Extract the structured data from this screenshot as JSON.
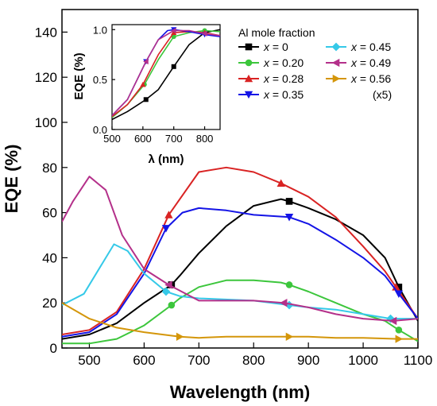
{
  "chart_data": [
    {
      "type": "line",
      "xlabel": "Wavelength (nm)",
      "ylabel": "EQE (%)",
      "xlim": [
        450,
        1100
      ],
      "ylim": [
        0,
        150
      ],
      "xticks": [
        500,
        600,
        700,
        800,
        900,
        1000,
        1100
      ],
      "yticks": [
        0,
        20,
        40,
        60,
        80,
        100,
        120,
        140
      ],
      "legend_title": "Al mole fraction",
      "legend_note": "(x5)",
      "legend_position": "top-right",
      "series": [
        {
          "name": "x = 0",
          "label_prefix": "x",
          "label_value": " = 0",
          "color": "#000000",
          "marker": "square",
          "x": [
            450,
            500,
            550,
            600,
            650,
            665,
            700,
            750,
            800,
            850,
            865,
            900,
            950,
            1000,
            1040,
            1065,
            1100
          ],
          "y": [
            4,
            6,
            11,
            20,
            28,
            32,
            42,
            54,
            63,
            66,
            65,
            62,
            57,
            50,
            40,
            27,
            12
          ]
        },
        {
          "name": "x = 0.20",
          "label_prefix": "x",
          "label_value": " = 0.20",
          "color": "#3cc63c",
          "marker": "circle",
          "x": [
            450,
            500,
            550,
            600,
            650,
            665,
            700,
            750,
            800,
            850,
            865,
            900,
            950,
            1000,
            1040,
            1065,
            1100
          ],
          "y": [
            2,
            2,
            4,
            10,
            19,
            22,
            27,
            30,
            30,
            29,
            28,
            25,
            20,
            15,
            12,
            8,
            3
          ]
        },
        {
          "name": "x = 0.28",
          "label_prefix": "x",
          "label_value": " = 0.28",
          "color": "#d92323",
          "marker": "triangle-up",
          "x": [
            450,
            500,
            550,
            600,
            645,
            700,
            750,
            800,
            850,
            900,
            950,
            1000,
            1040,
            1060,
            1100
          ],
          "y": [
            6,
            8,
            16,
            35,
            59,
            78,
            80,
            78,
            73,
            67,
            58,
            45,
            34,
            27,
            13
          ]
        },
        {
          "name": "x = 0.35",
          "label_prefix": "x",
          "label_value": " = 0.35",
          "color": "#1414e6",
          "marker": "triangle-down",
          "x": [
            450,
            500,
            550,
            600,
            640,
            670,
            700,
            750,
            800,
            865,
            900,
            950,
            1000,
            1040,
            1065,
            1100
          ],
          "y": [
            5,
            7,
            15,
            33,
            53,
            60,
            62,
            61,
            59,
            58,
            55,
            48,
            40,
            32,
            24,
            13
          ]
        },
        {
          "name": "x = 0.45",
          "label_prefix": "x",
          "label_value": " = 0.45",
          "color": "#35c9e8",
          "marker": "diamond",
          "x": [
            450,
            490,
            520,
            545,
            570,
            600,
            640,
            665,
            700,
            800,
            865,
            900,
            950,
            1000,
            1050,
            1100
          ],
          "y": [
            19,
            24,
            36,
            46,
            43,
            33,
            25,
            23,
            22,
            21,
            19,
            18,
            17,
            15,
            13,
            13
          ]
        },
        {
          "name": "x = 0.49",
          "label_prefix": "x",
          "label_value": " = 0.49",
          "color": "#b4308a",
          "marker": "triangle-left",
          "x": [
            450,
            470,
            500,
            530,
            560,
            600,
            645,
            700,
            750,
            800,
            855,
            900,
            950,
            1000,
            1055,
            1100
          ],
          "y": [
            56,
            65,
            76,
            70,
            50,
            35,
            28,
            21,
            21,
            21,
            20,
            18,
            15,
            13,
            12,
            13
          ]
        },
        {
          "name": "x = 0.56",
          "label_prefix": "x",
          "label_value": " = 0.56",
          "color": "#d4960a",
          "marker": "triangle-right",
          "x": [
            450,
            500,
            550,
            600,
            665,
            700,
            750,
            800,
            865,
            900,
            950,
            1000,
            1065,
            1100
          ],
          "y": [
            20,
            13,
            9,
            7,
            5,
            4.5,
            5,
            5,
            5,
            5,
            4.5,
            4.5,
            4,
            4
          ]
        }
      ]
    },
    {
      "type": "line",
      "xlabel": "λ (nm)",
      "ylabel": "EQE (%)",
      "xlim": [
        500,
        850
      ],
      "ylim": [
        0,
        1.05
      ],
      "xticks": [
        500,
        600,
        700,
        800
      ],
      "yticks": [
        0.0,
        0.5,
        1.0
      ],
      "ytick_labels": [
        "0.0",
        "0.5",
        "1.0"
      ],
      "series": [
        {
          "name": "x = 0",
          "color": "#000000",
          "marker": "square",
          "x": [
            500,
            550,
            610,
            650,
            700,
            750,
            800,
            850
          ],
          "y": [
            0.1,
            0.18,
            0.3,
            0.4,
            0.63,
            0.85,
            0.97,
            1.0
          ]
        },
        {
          "name": "x = 0.20",
          "color": "#3cc63c",
          "marker": "circle",
          "x": [
            500,
            550,
            605,
            650,
            700,
            750,
            800,
            850
          ],
          "y": [
            0.12,
            0.25,
            0.45,
            0.7,
            0.93,
            0.97,
            0.99,
            0.98
          ]
        },
        {
          "name": "x = 0.28",
          "color": "#d92323",
          "marker": "triangle-up",
          "x": [
            500,
            550,
            600,
            650,
            700,
            750,
            800,
            850
          ],
          "y": [
            0.13,
            0.25,
            0.45,
            0.75,
            0.97,
            0.98,
            0.97,
            0.94
          ]
        },
        {
          "name": "x = 0.35",
          "color": "#1414e6",
          "marker": "triangle-down",
          "x": [
            500,
            550,
            610,
            650,
            680,
            700,
            750,
            800,
            850
          ],
          "y": [
            0.14,
            0.3,
            0.68,
            0.9,
            0.99,
            1.0,
            0.98,
            0.95,
            0.93
          ]
        },
        {
          "name": "x = 0.49",
          "color": "#b4308a",
          "marker": "triangle-left",
          "x": [
            500,
            550,
            610,
            650,
            700,
            750,
            800,
            850
          ],
          "y": [
            0.14,
            0.3,
            0.68,
            0.9,
            0.99,
            0.99,
            0.96,
            0.94
          ]
        }
      ]
    }
  ]
}
